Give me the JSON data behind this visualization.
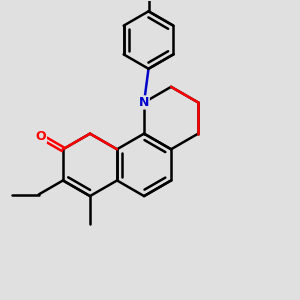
{
  "background_color": "#e0e0e0",
  "bond_color": "#000000",
  "oxygen_color": "#ff0000",
  "nitrogen_color": "#0000cc",
  "bond_width": 1.8,
  "dbo": 0.07,
  "figsize": [
    3.0,
    3.0
  ],
  "dpi": 100
}
